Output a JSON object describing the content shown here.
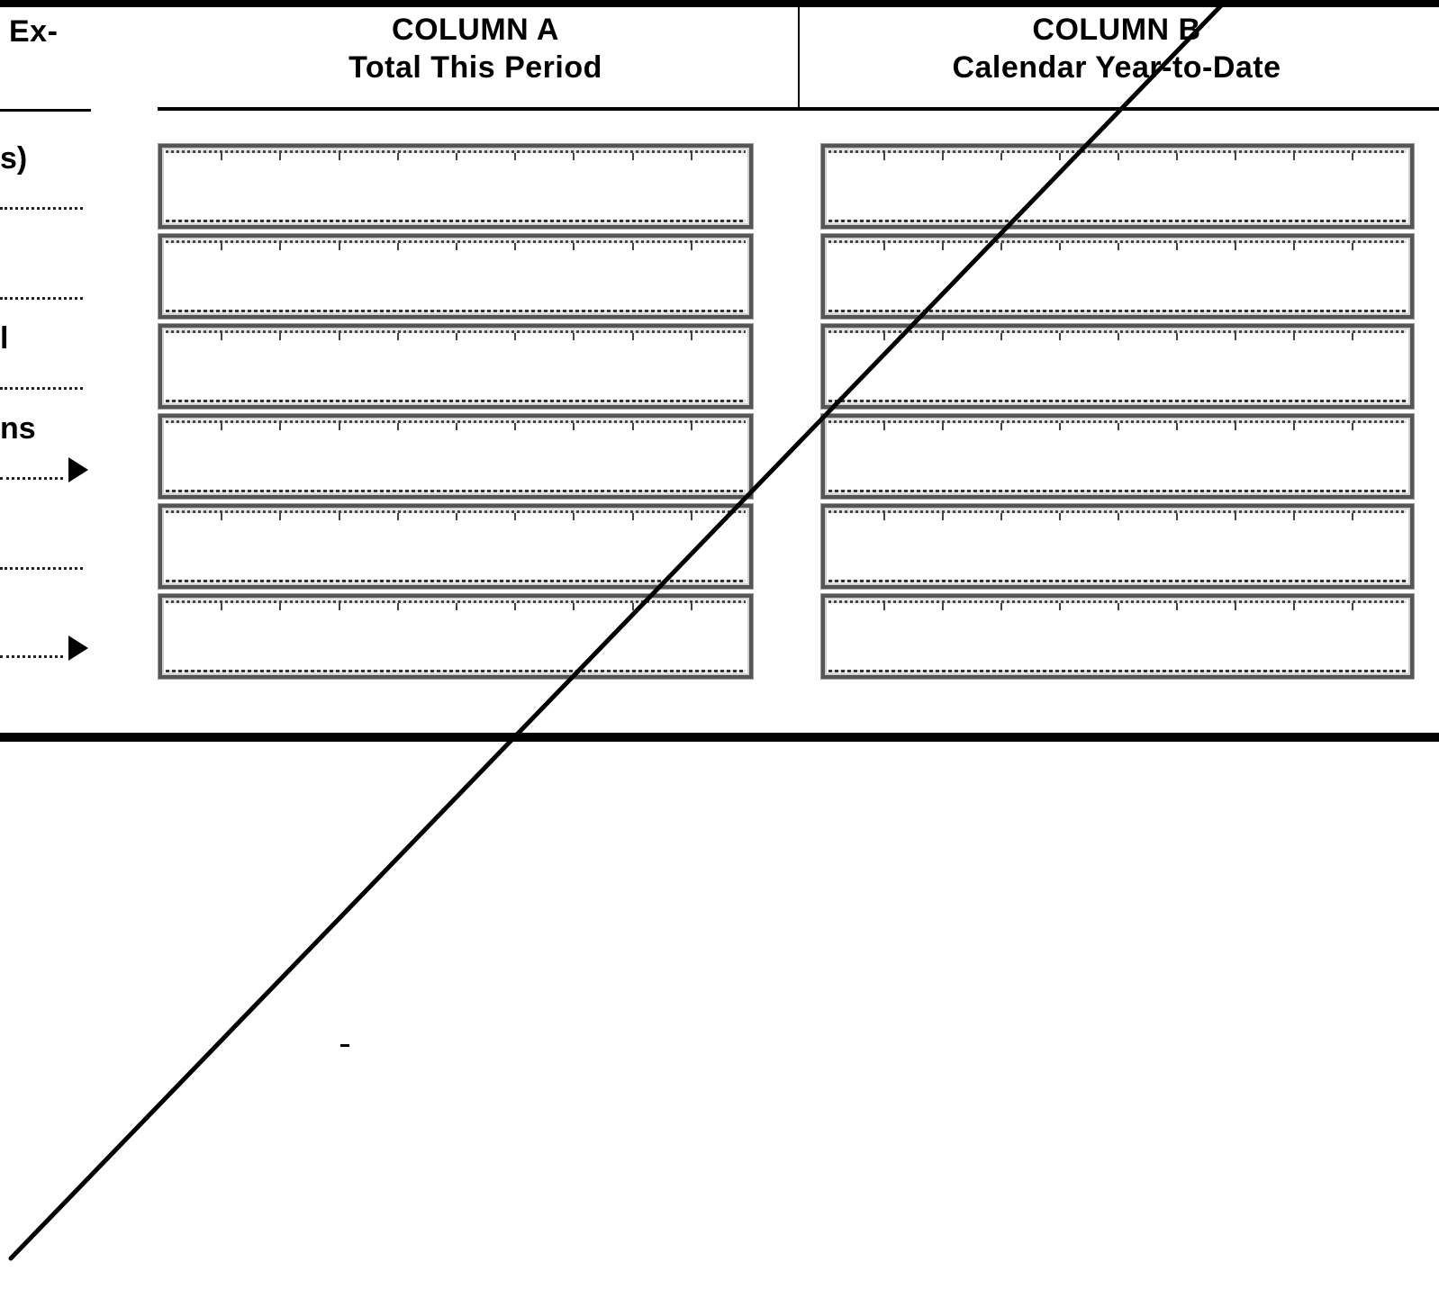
{
  "headers": {
    "partial_left": "Ex-",
    "column_a": {
      "title": "COLUMN A",
      "subtitle": "Total This Period"
    },
    "column_b": {
      "title": "COLUMN B",
      "subtitle": "Calendar Year-to-Date"
    }
  },
  "left_fragments": {
    "row1": "s)",
    "row3": "l",
    "row4": "ns"
  },
  "rows": [
    {
      "id": 1,
      "column_a_value": "",
      "column_b_value": ""
    },
    {
      "id": 2,
      "column_a_value": "",
      "column_b_value": ""
    },
    {
      "id": 3,
      "column_a_value": "",
      "column_b_value": ""
    },
    {
      "id": 4,
      "column_a_value": "",
      "column_b_value": "",
      "arrow": true
    },
    {
      "id": 5,
      "column_a_value": "",
      "column_b_value": ""
    },
    {
      "id": 6,
      "column_a_value": "",
      "column_b_value": "",
      "arrow": true
    }
  ],
  "colors": {
    "ink": "#000000",
    "box_border": "#555555",
    "background": "#ffffff"
  },
  "icons": {
    "row_pointer": "right-triangle-arrow-icon",
    "cancel_mark": "diagonal-strike-line"
  }
}
